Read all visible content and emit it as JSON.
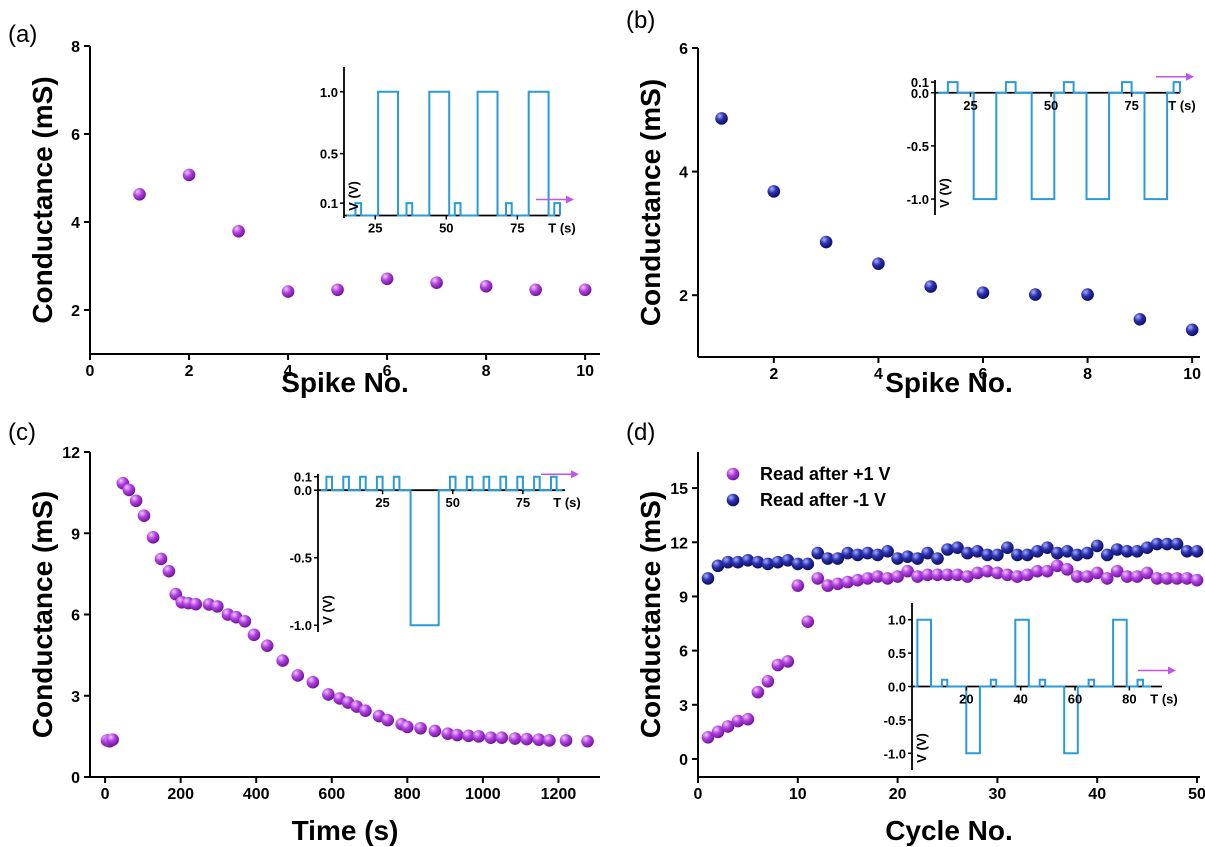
{
  "figure": {
    "panels": [
      "(a)",
      "(b)",
      "(c)",
      "(d)"
    ]
  },
  "chart_data": [
    {
      "panel": "(a)",
      "type": "scatter",
      "xlabel": "Spike No.",
      "ylabel": "Conductance (mS)",
      "xlim": [
        0,
        10.3
      ],
      "ylim": [
        1.0,
        8.0
      ],
      "xticks": [
        0,
        2,
        4,
        6,
        8,
        10
      ],
      "yticks": [
        2,
        4,
        6,
        8
      ],
      "series": [
        {
          "color": "#9a28c4",
          "x": [
            1,
            2,
            3,
            4,
            5,
            6,
            7,
            8,
            9,
            10
          ],
          "y": [
            4.63,
            5.07,
            3.79,
            2.42,
            2.46,
            2.71,
            2.62,
            2.54,
            2.46,
            2.46
          ]
        }
      ],
      "inset": {
        "type": "waveform",
        "xlabel": "T (s)",
        "ylabel": "V (V)",
        "xlim": [
          14,
          90
        ],
        "ylim": [
          -0.02,
          1.2
        ],
        "xticks": [
          25,
          50,
          75
        ],
        "yticks": [
          0.1,
          0.5,
          1.0
        ],
        "ytick_labels": [
          "0.1",
          "0.5",
          "1.0"
        ],
        "waveform": [
          [
            15,
            0
          ],
          [
            18,
            0
          ],
          [
            18,
            0.1
          ],
          [
            20,
            0.1
          ],
          [
            20,
            0
          ],
          [
            26,
            0
          ],
          [
            26,
            1
          ],
          [
            33,
            1
          ],
          [
            33,
            0
          ],
          [
            36,
            0
          ],
          [
            36,
            0.1
          ],
          [
            38,
            0.1
          ],
          [
            38,
            0
          ],
          [
            44,
            0
          ],
          [
            44,
            1
          ],
          [
            51,
            1
          ],
          [
            51,
            0
          ],
          [
            53,
            0
          ],
          [
            53,
            0.1
          ],
          [
            55,
            0.1
          ],
          [
            55,
            0
          ],
          [
            61,
            0
          ],
          [
            61,
            1
          ],
          [
            68,
            1
          ],
          [
            68,
            0
          ],
          [
            71,
            0
          ],
          [
            71,
            0.1
          ],
          [
            73,
            0.1
          ],
          [
            73,
            0
          ],
          [
            79,
            0
          ],
          [
            79,
            1
          ],
          [
            86,
            1
          ],
          [
            86,
            0
          ],
          [
            88,
            0
          ],
          [
            88,
            0.1
          ],
          [
            90,
            0.1
          ],
          [
            90,
            0
          ]
        ]
      }
    },
    {
      "panel": "(b)",
      "type": "scatter",
      "xlabel": "Spike No.",
      "ylabel": "Conductance (mS)",
      "xlim": [
        0.55,
        10.15
      ],
      "ylim": [
        1.0,
        6.0
      ],
      "xticks": [
        2,
        4,
        6,
        8,
        10
      ],
      "yticks": [
        2,
        4,
        6
      ],
      "series": [
        {
          "color": "#1c1f8a",
          "x": [
            1,
            2,
            3,
            4,
            5,
            6,
            7,
            8,
            9,
            10
          ],
          "y": [
            4.86,
            3.68,
            2.86,
            2.51,
            2.14,
            2.04,
            2.01,
            2.01,
            1.61,
            1.44
          ]
        }
      ],
      "inset": {
        "type": "waveform",
        "xlabel": "T (s)",
        "ylabel": "V (V)",
        "xlim": [
          14,
          90
        ],
        "ylim": [
          -1.15,
          0.12
        ],
        "xticks": [
          25,
          50,
          75
        ],
        "yticks": [
          0.1,
          0.0,
          -0.5,
          -1.0
        ],
        "ytick_labels": [
          "0.1",
          "0.0",
          "-0.5",
          "-1.0"
        ],
        "waveform": [
          [
            15,
            0
          ],
          [
            18,
            0
          ],
          [
            18,
            0.1
          ],
          [
            21,
            0.1
          ],
          [
            21,
            0
          ],
          [
            26,
            0
          ],
          [
            26,
            -1
          ],
          [
            33,
            -1
          ],
          [
            33,
            0
          ],
          [
            36,
            0
          ],
          [
            36,
            0.1
          ],
          [
            39,
            0.1
          ],
          [
            39,
            0
          ],
          [
            44,
            0
          ],
          [
            44,
            -1
          ],
          [
            51,
            -1
          ],
          [
            51,
            0
          ],
          [
            54,
            0
          ],
          [
            54,
            0.1
          ],
          [
            57,
            0.1
          ],
          [
            57,
            0
          ],
          [
            61,
            0
          ],
          [
            61,
            -1
          ],
          [
            68,
            -1
          ],
          [
            68,
            0
          ],
          [
            72,
            0
          ],
          [
            72,
            0.1
          ],
          [
            75,
            0.1
          ],
          [
            75,
            0
          ],
          [
            79,
            0
          ],
          [
            79,
            -1
          ],
          [
            86,
            -1
          ],
          [
            86,
            0
          ],
          [
            88,
            0
          ],
          [
            88,
            0.1
          ],
          [
            90,
            0.1
          ],
          [
            90,
            0
          ]
        ]
      }
    },
    {
      "panel": "(c)",
      "type": "scatter",
      "xlabel": "Time (s)",
      "ylabel": "Conductance (mS)",
      "xlim": [
        -40,
        1310
      ],
      "ylim": [
        0,
        12
      ],
      "xticks": [
        0,
        200,
        400,
        600,
        800,
        1000,
        1200
      ],
      "yticks": [
        0,
        3,
        6,
        9,
        12
      ],
      "series": [
        {
          "color": "#9a28c4",
          "x": [
            5,
            12,
            20,
            47,
            63,
            82,
            103,
            127,
            148,
            169,
            187,
            203,
            220,
            240,
            275,
            297,
            325,
            347,
            370,
            394,
            429,
            470,
            510,
            550,
            591,
            621,
            643,
            666,
            689,
            725,
            748,
            785,
            800,
            835,
            873,
            907,
            932,
            962,
            989,
            1021,
            1050,
            1085,
            1116,
            1148,
            1176,
            1220,
            1277
          ],
          "y": [
            1.35,
            1.32,
            1.38,
            10.85,
            10.6,
            10.2,
            9.65,
            8.85,
            8.05,
            7.6,
            6.75,
            6.45,
            6.42,
            6.38,
            6.37,
            6.3,
            6.0,
            5.9,
            5.75,
            5.25,
            4.85,
            4.3,
            3.75,
            3.5,
            3.05,
            2.9,
            2.75,
            2.6,
            2.45,
            2.25,
            2.1,
            1.95,
            1.85,
            1.8,
            1.7,
            1.6,
            1.55,
            1.52,
            1.5,
            1.45,
            1.45,
            1.42,
            1.4,
            1.38,
            1.35,
            1.35,
            1.32
          ]
        }
      ],
      "inset": {
        "type": "waveform",
        "xlabel": "T (s)",
        "ylabel": "V (V)",
        "xlim": [
          2,
          90
        ],
        "ylim": [
          -1.05,
          0.12
        ],
        "xticks": [
          25,
          50,
          75
        ],
        "yticks": [
          0.1,
          0.0,
          -0.5,
          -1.0
        ],
        "ytick_labels": [
          "0.1",
          "0.0",
          "-0.5",
          "-1.0"
        ],
        "waveform": [
          [
            3,
            0
          ],
          [
            5,
            0
          ],
          [
            5,
            0.1
          ],
          [
            7,
            0.1
          ],
          [
            7,
            0
          ],
          [
            11,
            0
          ],
          [
            11,
            0.1
          ],
          [
            13,
            0.1
          ],
          [
            13,
            0
          ],
          [
            17,
            0
          ],
          [
            17,
            0.1
          ],
          [
            19,
            0.1
          ],
          [
            19,
            0
          ],
          [
            23,
            0
          ],
          [
            23,
            0.1
          ],
          [
            25,
            0.1
          ],
          [
            25,
            0
          ],
          [
            29,
            0
          ],
          [
            29,
            0.1
          ],
          [
            31,
            0.1
          ],
          [
            31,
            0
          ],
          [
            35,
            0
          ],
          [
            35,
            -1
          ],
          [
            45,
            -1
          ],
          [
            45,
            0
          ],
          [
            49,
            0
          ],
          [
            49,
            0.1
          ],
          [
            51,
            0.1
          ],
          [
            51,
            0
          ],
          [
            55,
            0
          ],
          [
            55,
            0.1
          ],
          [
            57,
            0.1
          ],
          [
            57,
            0
          ],
          [
            61,
            0
          ],
          [
            61,
            0.1
          ],
          [
            63,
            0.1
          ],
          [
            63,
            0
          ],
          [
            67,
            0
          ],
          [
            67,
            0.1
          ],
          [
            69,
            0.1
          ],
          [
            69,
            0
          ],
          [
            73,
            0
          ],
          [
            73,
            0.1
          ],
          [
            75,
            0.1
          ],
          [
            75,
            0
          ],
          [
            79,
            0
          ],
          [
            79,
            0.1
          ],
          [
            81,
            0.1
          ],
          [
            81,
            0
          ],
          [
            85,
            0
          ],
          [
            85,
            0.1
          ],
          [
            87,
            0.1
          ],
          [
            87,
            0
          ],
          [
            89,
            0
          ]
        ]
      }
    },
    {
      "panel": "(d)",
      "type": "scatter",
      "xlabel": "Cycle No.",
      "ylabel": "Conductance (mS)",
      "xlim": [
        0,
        50.3
      ],
      "ylim": [
        -1,
        17
      ],
      "xticks": [
        0,
        10,
        20,
        30,
        40,
        50
      ],
      "yticks": [
        0,
        3,
        6,
        9,
        12,
        15
      ],
      "legend": {
        "location": "top-left"
      },
      "series": [
        {
          "name": "Read after +1 V",
          "color": "#9a28c4",
          "x": [
            1,
            2,
            3,
            4,
            5,
            6,
            7,
            8,
            9,
            10,
            11,
            12,
            13,
            14,
            15,
            16,
            17,
            18,
            19,
            20,
            21,
            22,
            23,
            24,
            25,
            26,
            27,
            28,
            29,
            30,
            31,
            32,
            33,
            34,
            35,
            36,
            37,
            38,
            39,
            40,
            41,
            42,
            43,
            44,
            45,
            46,
            47,
            48,
            49,
            50
          ],
          "y": [
            1.2,
            1.5,
            1.8,
            2.1,
            2.2,
            3.7,
            4.3,
            5.2,
            5.4,
            9.6,
            7.6,
            10.0,
            9.6,
            9.7,
            9.8,
            9.9,
            10.0,
            10.1,
            10.0,
            10.1,
            10.4,
            10.1,
            10.2,
            10.2,
            10.2,
            10.2,
            10.1,
            10.3,
            10.4,
            10.3,
            10.2,
            10.1,
            10.2,
            10.4,
            10.4,
            10.7,
            10.5,
            10.1,
            10.1,
            10.3,
            10.0,
            10.4,
            10.1,
            10.1,
            10.3,
            10.0,
            10.0,
            10.0,
            10.0,
            9.9
          ]
        },
        {
          "name": "Read after -1 V",
          "color": "#1c1f8a",
          "x": [
            1,
            2,
            3,
            4,
            5,
            6,
            7,
            8,
            9,
            10,
            11,
            12,
            13,
            14,
            15,
            16,
            17,
            18,
            19,
            20,
            21,
            22,
            23,
            24,
            25,
            26,
            27,
            28,
            29,
            30,
            31,
            32,
            33,
            34,
            35,
            36,
            37,
            38,
            39,
            40,
            41,
            42,
            43,
            44,
            45,
            46,
            47,
            48,
            49,
            50
          ],
          "y": [
            10.0,
            10.7,
            10.9,
            10.9,
            11.0,
            10.9,
            10.8,
            10.9,
            11.0,
            10.8,
            10.8,
            11.4,
            11.1,
            11.1,
            11.4,
            11.3,
            11.4,
            11.3,
            11.5,
            11.1,
            11.2,
            11.1,
            11.4,
            11.1,
            11.6,
            11.7,
            11.4,
            11.5,
            11.3,
            11.3,
            11.7,
            11.3,
            11.3,
            11.5,
            11.7,
            11.4,
            11.5,
            11.3,
            11.4,
            11.8,
            11.3,
            11.6,
            11.5,
            11.5,
            11.7,
            11.9,
            11.9,
            11.9,
            11.5,
            11.5
          ]
        }
      ],
      "inset": {
        "type": "waveform",
        "xlabel": "T (s)",
        "ylabel": "V (V)",
        "xlim": [
          0,
          92
        ],
        "ylim": [
          -1.25,
          1.25
        ],
        "xticks": [
          20,
          40,
          60,
          80
        ],
        "yticks": [
          1.0,
          0.5,
          0.0,
          -0.5,
          -1.0
        ],
        "ytick_labels": [
          "1.0",
          "0.5",
          "0.0",
          "-0.5",
          "-1.0"
        ],
        "waveform": [
          [
            1,
            0
          ],
          [
            2,
            0
          ],
          [
            2,
            1
          ],
          [
            7,
            1
          ],
          [
            7,
            0
          ],
          [
            11,
            0
          ],
          [
            11,
            0.1
          ],
          [
            13,
            0.1
          ],
          [
            13,
            0
          ],
          [
            20,
            0
          ],
          [
            20,
            -1
          ],
          [
            25,
            -1
          ],
          [
            25,
            0
          ],
          [
            29,
            0
          ],
          [
            29,
            0.1
          ],
          [
            31,
            0.1
          ],
          [
            31,
            0
          ],
          [
            38,
            0
          ],
          [
            38,
            1
          ],
          [
            43,
            1
          ],
          [
            43,
            0
          ],
          [
            47,
            0
          ],
          [
            47,
            0.1
          ],
          [
            49,
            0.1
          ],
          [
            49,
            0
          ],
          [
            56,
            0
          ],
          [
            56,
            -1
          ],
          [
            61,
            -1
          ],
          [
            61,
            0
          ],
          [
            65,
            0
          ],
          [
            65,
            0.1
          ],
          [
            67,
            0.1
          ],
          [
            67,
            0
          ],
          [
            74,
            0
          ],
          [
            74,
            1
          ],
          [
            79,
            1
          ],
          [
            79,
            0
          ],
          [
            83,
            0
          ],
          [
            83,
            0.1
          ],
          [
            85,
            0.1
          ],
          [
            85,
            0
          ],
          [
            88,
            0
          ]
        ]
      }
    }
  ]
}
